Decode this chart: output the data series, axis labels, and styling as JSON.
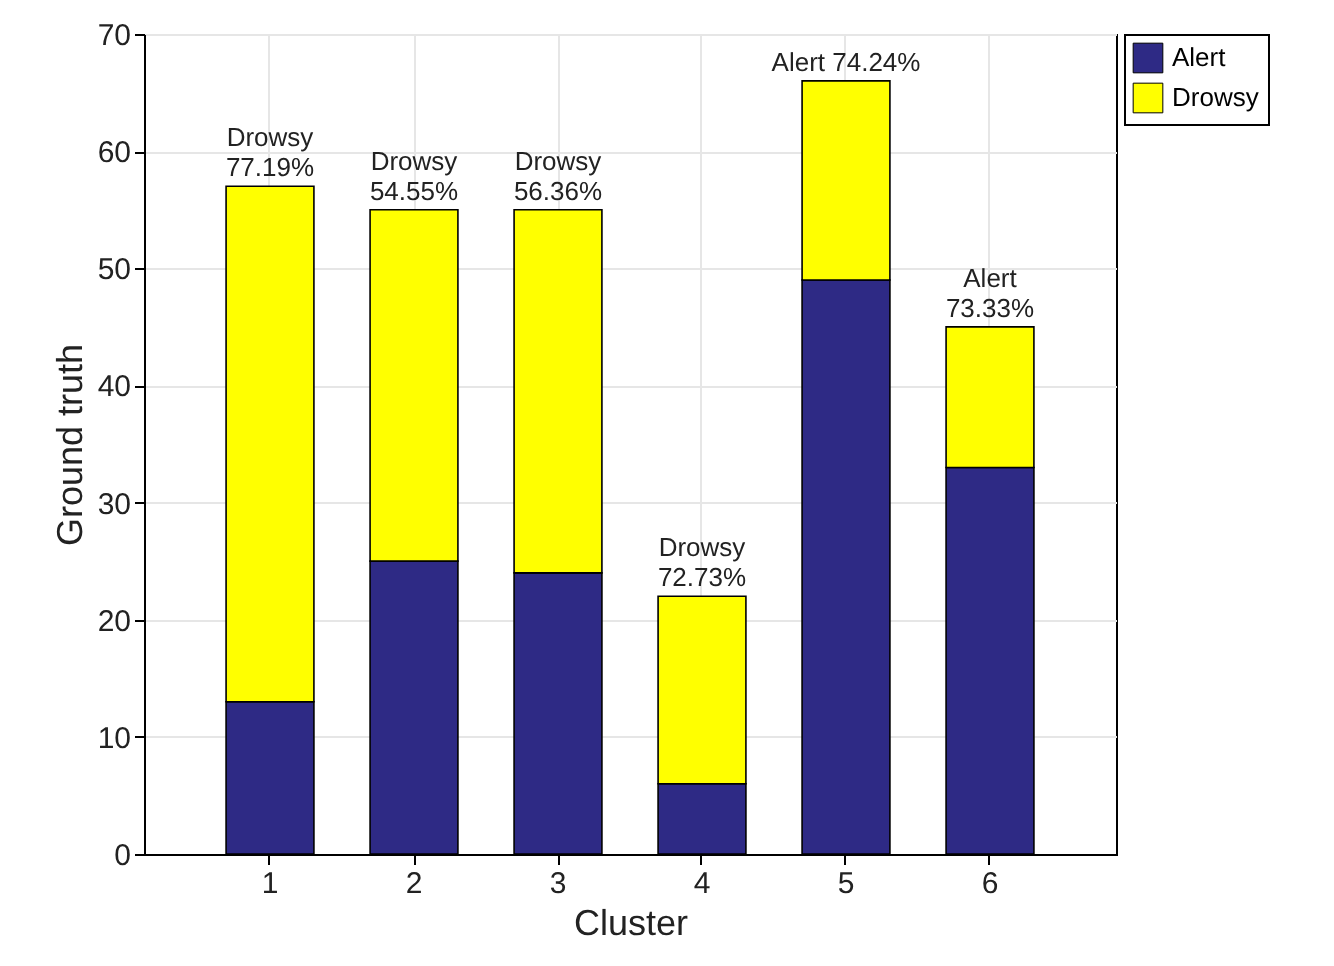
{
  "chart_data": {
    "type": "bar",
    "stacked": true,
    "xlabel": "Cluster",
    "ylabel": "Ground truth",
    "categories": [
      "1",
      "2",
      "3",
      "4",
      "5",
      "6"
    ],
    "series": [
      {
        "name": "Alert",
        "color": "#2e2a85",
        "values": [
          13,
          25,
          24,
          6,
          49,
          33
        ]
      },
      {
        "name": "Drowsy",
        "color": "#ffff00",
        "values": [
          44,
          30,
          31,
          16,
          17,
          12
        ]
      }
    ],
    "ylim": [
      0,
      70
    ],
    "yticks": [
      0,
      10,
      20,
      30,
      40,
      50,
      60,
      70
    ],
    "grid": true,
    "legend": "top right",
    "annotations": [
      {
        "text": "Drowsy\n77.19%",
        "x": "1",
        "y": 57
      },
      {
        "text": "Drowsy\n54.55%",
        "x": "2",
        "y": 55
      },
      {
        "text": "Drowsy\n56.36%",
        "x": "3",
        "y": 55
      },
      {
        "text": "Drowsy\n72.73%",
        "x": "4",
        "y": 22
      },
      {
        "text": "Alert 74.24%",
        "x": "5",
        "y": 66
      },
      {
        "text": "Alert\n73.33%",
        "x": "6",
        "y": 45
      }
    ]
  }
}
